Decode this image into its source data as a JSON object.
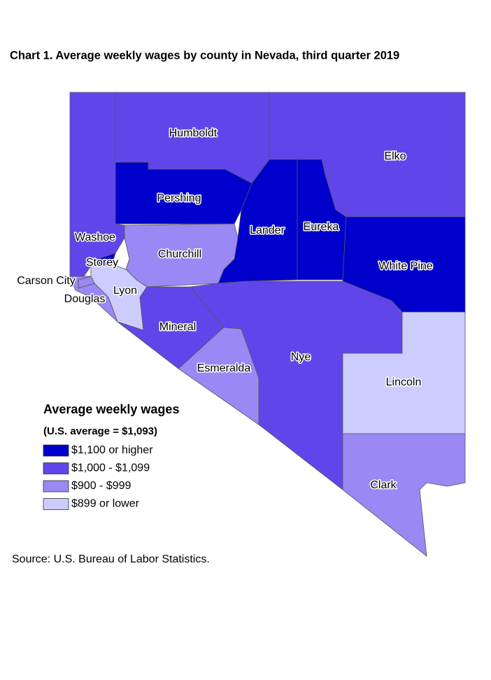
{
  "title": "Chart 1. Average weekly wages by county in Nevada, third quarter 2019",
  "counties": [
    {
      "name": "Humboldt",
      "color": "#6046ea"
    },
    {
      "name": "Elko",
      "color": "#6046ea"
    },
    {
      "name": "Pershing",
      "color": "#0000cc"
    },
    {
      "name": "Lander",
      "color": "#0000cc"
    },
    {
      "name": "Eureka",
      "color": "#0000cc"
    },
    {
      "name": "White Pine",
      "color": "#0000cc"
    },
    {
      "name": "Washoe",
      "color": "#6046ea"
    },
    {
      "name": "Storey",
      "color": "#0000cc"
    },
    {
      "name": "Churchill",
      "color": "#9a88f4"
    },
    {
      "name": "Carson City",
      "color": "#9a88f4"
    },
    {
      "name": "Douglas",
      "color": "#9a88f4"
    },
    {
      "name": "Lyon",
      "color": "#ccccff"
    },
    {
      "name": "Mineral",
      "color": "#6046ea"
    },
    {
      "name": "Esmeralda",
      "color": "#9a88f4"
    },
    {
      "name": "Nye",
      "color": "#6046ea"
    },
    {
      "name": "Lincoln",
      "color": "#ccccff"
    },
    {
      "name": "Clark",
      "color": "#9a88f4"
    }
  ],
  "legend": {
    "title": "Average weekly wages",
    "subtitle": "(U.S. average = $1,093)",
    "items": [
      {
        "label": "$1,100 or higher",
        "color": "#0000cc"
      },
      {
        "label": "$1,000 - $1,099",
        "color": "#6046ea"
      },
      {
        "label": "$900 - $999",
        "color": "#9a88f4"
      },
      {
        "label": "$899 or lower",
        "color": "#ccccff"
      }
    ]
  },
  "source": "Source: U.S. Bureau of Labor Statistics."
}
